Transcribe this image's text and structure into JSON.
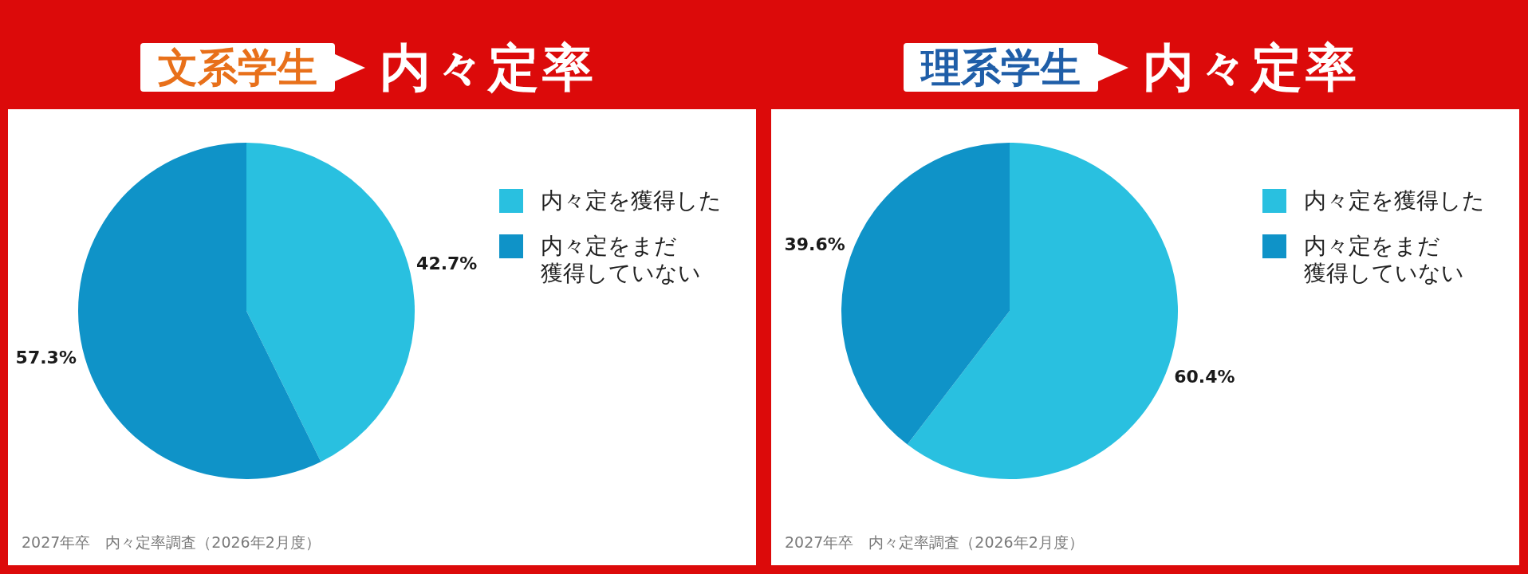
{
  "chart_data": [
    {
      "type": "pie",
      "title": "文系学生",
      "subtitle": "内々定率",
      "categories": [
        "内々定を獲得した",
        "内々定をまだ獲得していない"
      ],
      "values": [
        42.7,
        57.3
      ],
      "colors": [
        "#29c0e0",
        "#0f93c8"
      ],
      "value_labels": [
        "42.7%",
        "57.3%"
      ],
      "legend": "right",
      "annotations": [
        "2027年卒　内々定率調査（2026年2月度）"
      ]
    },
    {
      "type": "pie",
      "title": "理系学生",
      "subtitle": "内々定率",
      "categories": [
        "内々定を獲得した",
        "内々定をまだ獲得していない"
      ],
      "values": [
        60.4,
        39.6
      ],
      "colors": [
        "#29c0e0",
        "#0f93c8"
      ],
      "value_labels": [
        "60.4%",
        "39.6%"
      ],
      "legend": "right",
      "annotations": [
        "2027年卒　内々定率調査（2026年2月度）"
      ]
    }
  ]
}
